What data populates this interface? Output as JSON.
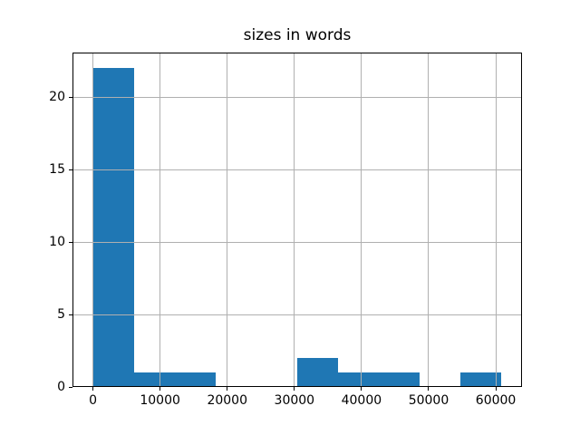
{
  "title": "sizes in words",
  "chart_data": {
    "type": "histogram",
    "title": "sizes in words",
    "xlabel": "",
    "ylabel": "",
    "bin_edges": [
      0,
      6086,
      12172,
      18258,
      24344,
      30430,
      36516,
      42602,
      48688,
      54774,
      60860
    ],
    "counts": [
      22,
      1,
      1,
      0,
      0,
      2,
      1,
      1,
      0,
      1
    ],
    "x_ticks": [
      0,
      10000,
      20000,
      30000,
      40000,
      50000,
      60000
    ],
    "x_tick_labels": [
      "0",
      "10000",
      "20000",
      "30000",
      "40000",
      "50000",
      "60000"
    ],
    "y_ticks": [
      0,
      5,
      10,
      15,
      20
    ],
    "y_tick_labels": [
      "0",
      "5",
      "10",
      "15",
      "20"
    ],
    "xlim": [
      -3043,
      63903
    ],
    "ylim": [
      0,
      23.1
    ],
    "grid": true,
    "legend": false,
    "bar_color": "#1f77b4",
    "grid_color": "#b0b0b0",
    "spine_color": "#000000",
    "background_color": "#ffffff"
  }
}
